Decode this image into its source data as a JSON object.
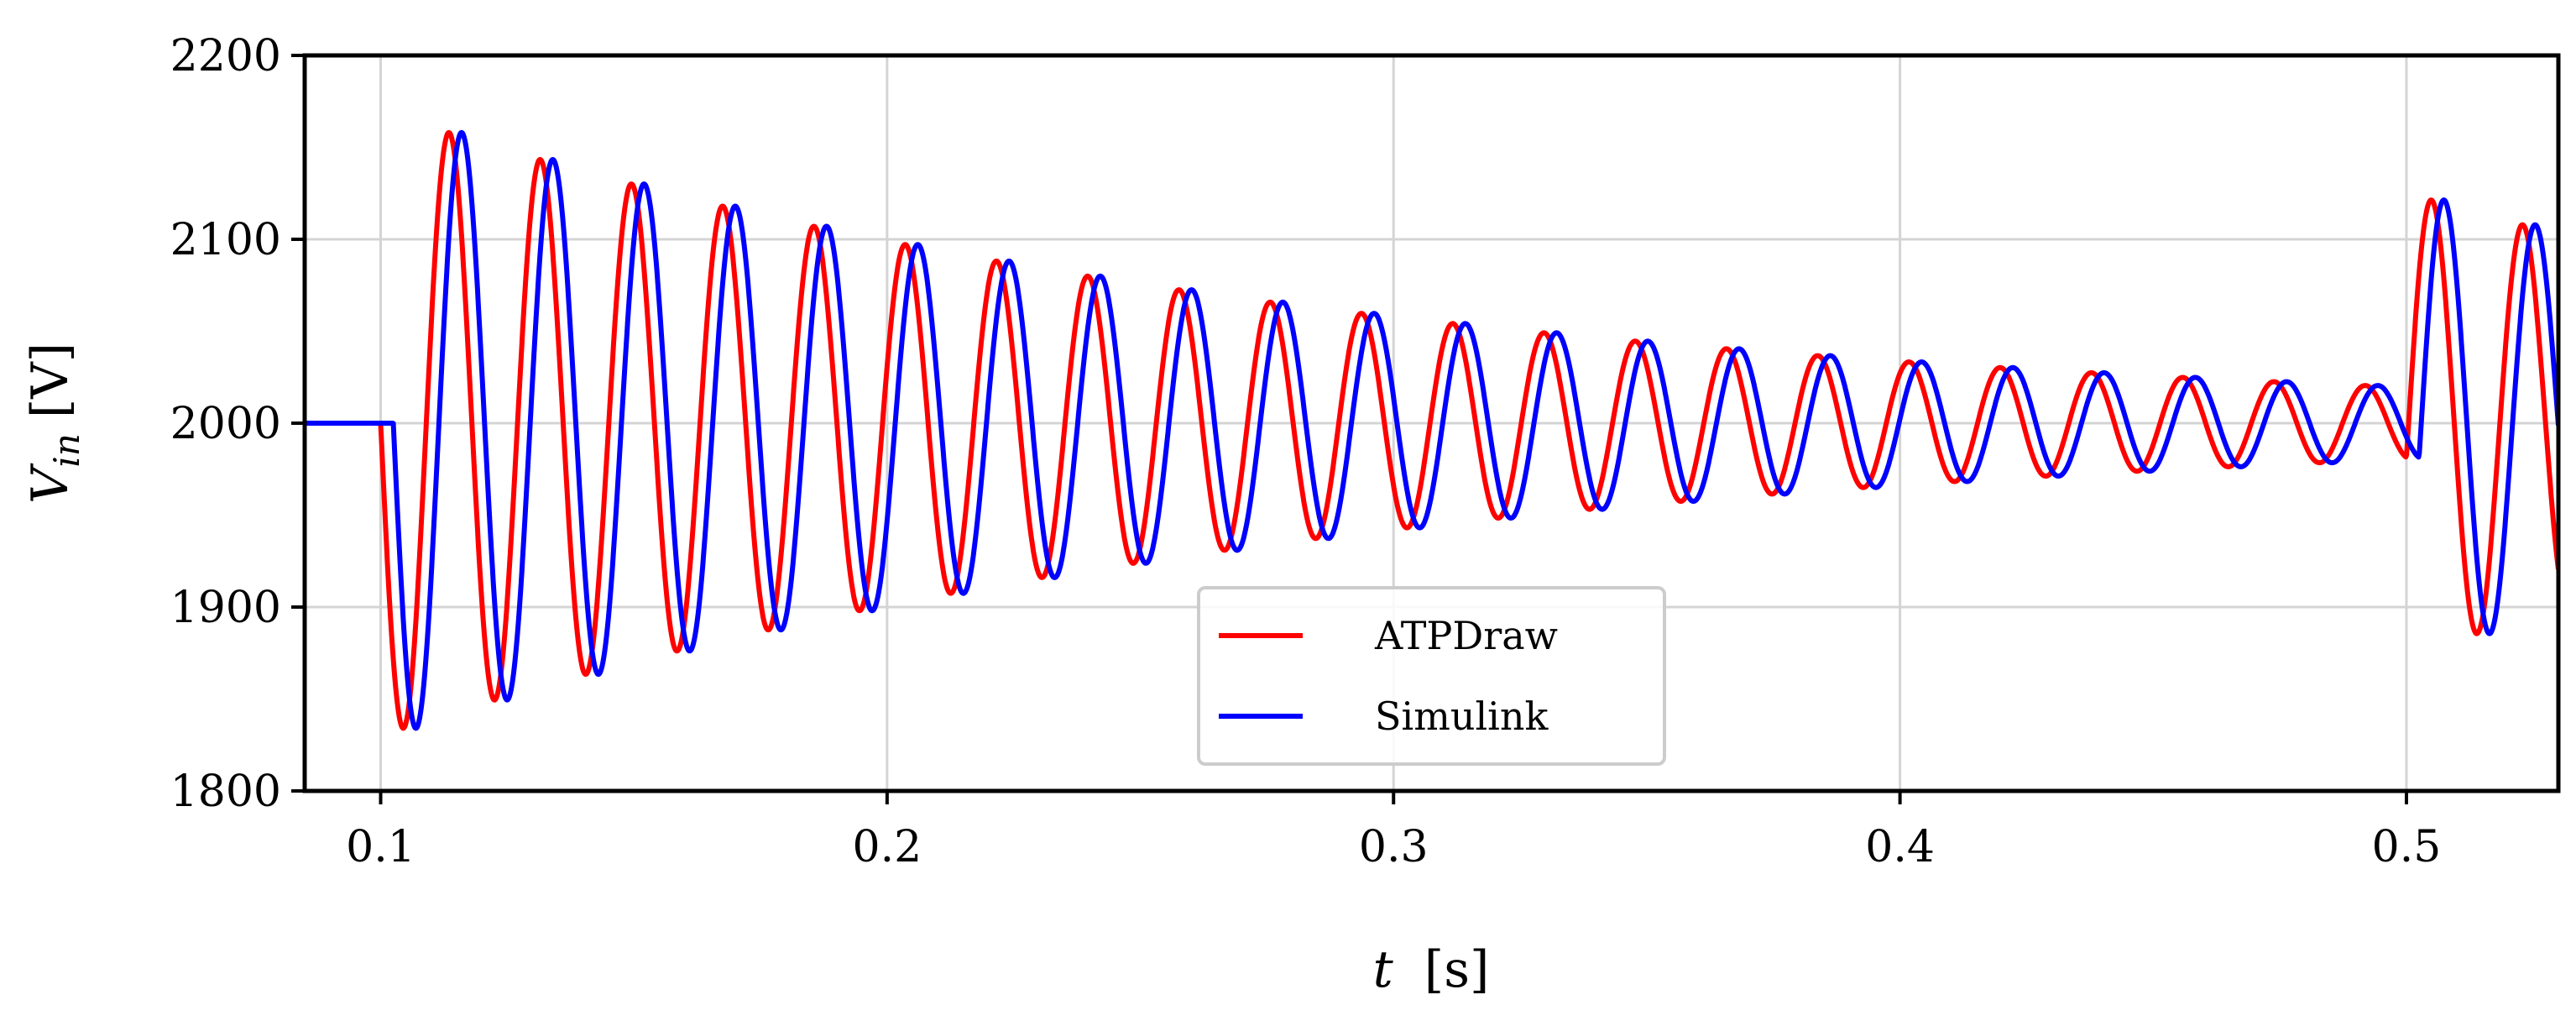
{
  "chart_data": {
    "type": "line",
    "title": "",
    "xlabel": "t [s]",
    "ylabel": "V_in [V]",
    "xlabel_parts": {
      "var": "t",
      "unit": "[s]"
    },
    "ylabel_parts": {
      "var": "V",
      "sub": "in",
      "unit": "[V]"
    },
    "xlim": [
      0.085,
      0.53
    ],
    "ylim": [
      1800,
      2200
    ],
    "xticks": [
      0.1,
      0.2,
      0.3,
      0.4,
      0.5
    ],
    "xtick_labels": [
      "0.1",
      "0.2",
      "0.3",
      "0.4",
      "0.5"
    ],
    "yticks": [
      1800,
      1900,
      2000,
      2100,
      2200
    ],
    "ytick_labels": [
      "1800",
      "1900",
      "2000",
      "2100",
      "2200"
    ],
    "grid": true,
    "legend_position": "lower-center",
    "signal": {
      "baseline": 2000,
      "first_step_time": 0.1,
      "second_step_time": 0.5,
      "oscillation_frequency_hz": 55.5,
      "first_transient_amplitude": 170,
      "first_transient_decay_per_s": 5.4,
      "second_transient_amplitude": 130,
      "second_transient_decay_per_s": 6.5
    },
    "series": [
      {
        "name": "ATPDraw",
        "color": "#ff0000",
        "time_delay": 0.0
      },
      {
        "name": "Simulink",
        "color": "#0000ff",
        "time_delay": 0.0025
      }
    ]
  }
}
